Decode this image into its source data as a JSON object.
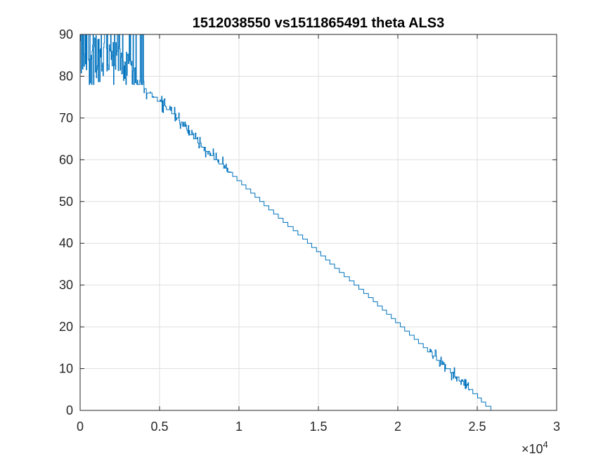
{
  "chart_data": {
    "type": "line",
    "title": "1512038550 vs1511865491 theta ALS3",
    "xlabel": "",
    "ylabel": "",
    "xlim": [
      0,
      30000
    ],
    "ylim": [
      0,
      90
    ],
    "x_exponent_label": "×10⁴",
    "x_exponent_base": "×10",
    "x_exponent_power": "4",
    "x_ticks": [
      {
        "value": 0,
        "label": "0"
      },
      {
        "value": 5000,
        "label": "0.5"
      },
      {
        "value": 10000,
        "label": "1"
      },
      {
        "value": 15000,
        "label": "1.5"
      },
      {
        "value": 20000,
        "label": "2"
      },
      {
        "value": 25000,
        "label": "2.5"
      },
      {
        "value": 30000,
        "label": "3"
      }
    ],
    "y_ticks": [
      {
        "value": 0,
        "label": "0"
      },
      {
        "value": 10,
        "label": "10"
      },
      {
        "value": 20,
        "label": "20"
      },
      {
        "value": 30,
        "label": "30"
      },
      {
        "value": 40,
        "label": "40"
      },
      {
        "value": 50,
        "label": "50"
      },
      {
        "value": 60,
        "label": "60"
      },
      {
        "value": 70,
        "label": "70"
      },
      {
        "value": 80,
        "label": "80"
      },
      {
        "value": 90,
        "label": "90"
      }
    ],
    "grid": true,
    "series": [
      {
        "color": "#0072bd",
        "description_points": {
          "x": [
            0,
            1000,
            2000,
            3000,
            3500,
            4000,
            5000,
            6000,
            7000,
            8000,
            9000,
            10000,
            12000,
            14000,
            16000,
            18000,
            20000,
            22000,
            23000,
            24000,
            25000,
            25500,
            26000
          ],
          "y": [
            86,
            85,
            84,
            82,
            79,
            77,
            74,
            70.5,
            66,
            62,
            58.5,
            55,
            48,
            41.5,
            34.5,
            28,
            21,
            14,
            10.5,
            7,
            3.5,
            1.5,
            0
          ]
        },
        "noisy_region": {
          "x_end": 4000,
          "y_min": 78,
          "y_max": 90
        }
      }
    ]
  }
}
